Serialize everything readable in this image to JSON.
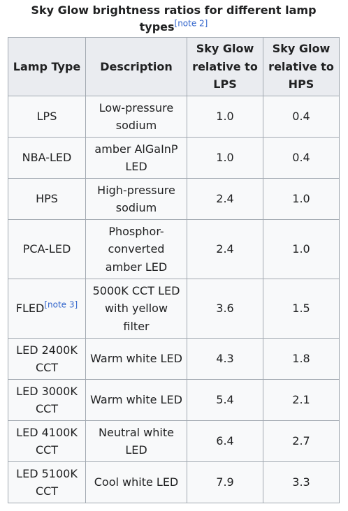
{
  "caption": {
    "text": "Sky Glow brightness ratios for different lamp types",
    "note": "[note 2]"
  },
  "headers": {
    "lamp_type": "Lamp Type",
    "description": "Description",
    "rel_lps": "Sky Glow relative to LPS",
    "rel_hps": "Sky Glow relative to HPS"
  },
  "rows": [
    {
      "lamp": "LPS",
      "note": "",
      "description": "Low-pressure sodium",
      "rel_lps": "1.0",
      "rel_hps": "0.4"
    },
    {
      "lamp": "NBA-LED",
      "note": "",
      "description": "amber AlGaInP LED",
      "rel_lps": "1.0",
      "rel_hps": "0.4"
    },
    {
      "lamp": "HPS",
      "note": "",
      "description": "High-pressure sodium",
      "rel_lps": "2.4",
      "rel_hps": "1.0"
    },
    {
      "lamp": "PCA-LED",
      "note": "",
      "description": "Phosphor-converted amber LED",
      "rel_lps": "2.4",
      "rel_hps": "1.0"
    },
    {
      "lamp": "FLED",
      "note": "[note 3]",
      "description": "5000K CCT LED with yellow filter",
      "rel_lps": "3.6",
      "rel_hps": "1.5"
    },
    {
      "lamp": "LED 2400K CCT",
      "note": "",
      "description": "Warm white LED",
      "rel_lps": "4.3",
      "rel_hps": "1.8"
    },
    {
      "lamp": "LED 3000K CCT",
      "note": "",
      "description": "Warm white LED",
      "rel_lps": "5.4",
      "rel_hps": "2.1"
    },
    {
      "lamp": "LED 4100K CCT",
      "note": "",
      "description": "Neutral white LED",
      "rel_lps": "6.4",
      "rel_hps": "2.7"
    },
    {
      "lamp": "LED 5100K CCT",
      "note": "",
      "description": "Cool white LED",
      "rel_lps": "7.9",
      "rel_hps": "3.3"
    }
  ]
}
